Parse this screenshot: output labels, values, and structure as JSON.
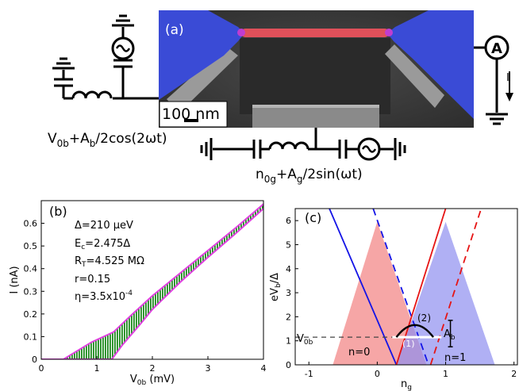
{
  "panel_a": {
    "label": "(a)",
    "scale_bar": "100 nm",
    "bias_formula": {
      "base": "V",
      "sub": "0b",
      "rest": "+A",
      "sub2": "b",
      "tail": "/2cos(2ωt)"
    },
    "gate_formula": {
      "base": "n",
      "sub": "0g",
      "rest": "+A",
      "sub2": "g",
      "tail": "/2sin(ωt)"
    },
    "ammeter_label": "A",
    "current_label": "I",
    "colors": {
      "leads": "#3a4bd6",
      "island": "#e0505a",
      "substrate": "#3e3e3e"
    }
  },
  "panel_b": {
    "label": "(b)",
    "xlabel": {
      "base": "V",
      "sub": "0b",
      "tail": " (mV)"
    },
    "ylabel": "I (nA)",
    "params": [
      {
        "text": "Δ=210 μeV"
      },
      {
        "base": "E",
        "sub": "c",
        "tail": "=2.475Δ"
      },
      {
        "base": "R",
        "sub": "T",
        "tail": "=4.525 MΩ"
      },
      {
        "text": "r=0.15"
      },
      {
        "base": "η=3.5x10",
        "sup": "-4"
      }
    ],
    "colors": {
      "band": "#1d8a1d",
      "edge": "#e040e0"
    }
  },
  "panel_c": {
    "label": "(c)",
    "xlabel": {
      "base": "n",
      "sub": "g"
    },
    "ylabel": {
      "base": "eV",
      "sub": "b",
      "tail": "/Δ"
    },
    "v0b_label": {
      "base": "V",
      "sub": "0b"
    },
    "ab_label": {
      "base": "A",
      "sub": "b"
    },
    "region_labels": [
      "n=0",
      "n=1"
    ],
    "marker_labels": [
      "(1)",
      "(2)"
    ],
    "colors": {
      "tri0": "#f28080",
      "tri1": "#8f8ff0",
      "blue_line": "#1414e6",
      "red_line": "#e61414"
    }
  },
  "chart_data": [
    {
      "type": "area",
      "title": "",
      "xlabel": "V0b (mV)",
      "ylabel": "I (nA)",
      "xlim": [
        0,
        4
      ],
      "ylim": [
        0,
        0.7
      ],
      "x_ticks": [
        0,
        1,
        2,
        3,
        4
      ],
      "y_ticks": [
        0,
        0.1,
        0.2,
        0.3,
        0.4,
        0.5,
        0.6
      ],
      "grid": false,
      "series": [
        {
          "values": [
            [
              0,
              0
            ],
            [
              0.4,
              0
            ],
            [
              0.6,
              0.03
            ],
            [
              0.9,
              0.075
            ],
            [
              1.3,
              0.12
            ],
            [
              1.6,
              0.19
            ],
            [
              2.0,
              0.28
            ],
            [
              2.5,
              0.38
            ],
            [
              3.0,
              0.48
            ],
            [
              3.5,
              0.58
            ],
            [
              4.0,
              0.685
            ]
          ]
        },
        {
          "values": [
            [
              0,
              0
            ],
            [
              1.27,
              0
            ],
            [
              1.45,
              0.06
            ],
            [
              1.8,
              0.16
            ],
            [
              2.0,
              0.22
            ],
            [
              2.5,
              0.34
            ],
            [
              3.0,
              0.45
            ],
            [
              3.5,
              0.555
            ],
            [
              4.0,
              0.665
            ]
          ]
        }
      ]
    },
    {
      "type": "line",
      "title": "",
      "xlabel": "ng",
      "ylabel": "eVb/Δ",
      "xlim": [
        -1.2,
        2.05
      ],
      "ylim": [
        0,
        6.5
      ],
      "x_ticks": [
        -1,
        0,
        1,
        2
      ],
      "y_ticks": [
        0,
        1,
        2,
        3,
        4,
        5,
        6
      ],
      "grid": false,
      "triangles": [
        {
          "label": "n=0",
          "apex": [
            0.0,
            5.95
          ],
          "base": [
            -0.65,
            0.72
          ]
        },
        {
          "label": "n=1",
          "apex": [
            1.0,
            5.95
          ],
          "base": [
            0.28,
            1.72
          ]
        }
      ],
      "series": [
        {
          "style": "solid",
          "color": "blue",
          "values": [
            [
              -0.7,
              6.5
            ],
            [
              0.28,
              0
            ]
          ]
        },
        {
          "style": "dashed",
          "color": "blue",
          "values": [
            [
              -0.06,
              6.5
            ],
            [
              0.75,
              0
            ]
          ]
        },
        {
          "style": "solid",
          "color": "red",
          "values": [
            [
              0.28,
              0
            ],
            [
              1.0,
              6.5
            ]
          ]
        },
        {
          "style": "dashed",
          "color": "red",
          "values": [
            [
              0.78,
              0
            ],
            [
              1.52,
              6.5
            ]
          ]
        }
      ],
      "V0b": 1.15,
      "Ab": 1.1
    }
  ]
}
